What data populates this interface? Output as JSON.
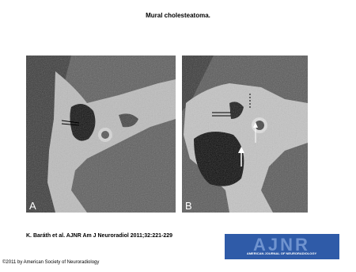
{
  "header": {
    "title": "Mural cholesteatoma."
  },
  "panels": [
    {
      "label": "A"
    },
    {
      "label": "B"
    }
  ],
  "citation": "K. Baráth et al. AJNR Am J Neuroradiol 2011;32:221-229",
  "logo": {
    "title": "AJNR",
    "subtitle": "AMERICAN JOURNAL OF NEURORADIOLOGY"
  },
  "copyright": "©2011 by American Society of Neuroradiology"
}
